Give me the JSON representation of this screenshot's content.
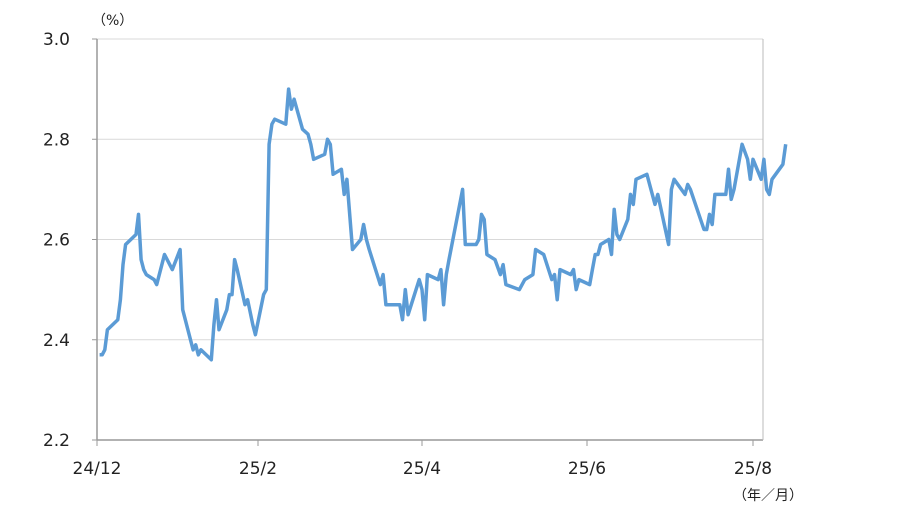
{
  "chart_data": {
    "type": "line",
    "title": "",
    "ylabel": "（%）",
    "xlabel": "（年／月）",
    "ylim": [
      2.2,
      3.0
    ],
    "yticks": [
      "2.2",
      "2.4",
      "2.6",
      "2.8",
      "3.0"
    ],
    "xticks": [
      {
        "label": "24/12",
        "date": "2024-12-01"
      },
      {
        "label": "25/2",
        "date": "2025-02-01"
      },
      {
        "label": "25/4",
        "date": "2025-04-01"
      },
      {
        "label": "25/6",
        "date": "2025-06-01"
      },
      {
        "label": "25/8",
        "date": "2025-08-01"
      }
    ],
    "grid": true,
    "line_color": "#5b9bd5",
    "series": [
      {
        "points": [
          [
            "2024-12-02",
            2.37
          ],
          [
            "2024-12-03",
            2.37
          ],
          [
            "2024-12-04",
            2.38
          ],
          [
            "2024-12-05",
            2.42
          ],
          [
            "2024-12-09",
            2.44
          ],
          [
            "2024-12-10",
            2.48
          ],
          [
            "2024-12-11",
            2.55
          ],
          [
            "2024-12-12",
            2.59
          ],
          [
            "2024-12-16",
            2.61
          ],
          [
            "2024-12-17",
            2.65
          ],
          [
            "2024-12-18",
            2.56
          ],
          [
            "2024-12-19",
            2.54
          ],
          [
            "2024-12-20",
            2.53
          ],
          [
            "2024-12-23",
            2.52
          ],
          [
            "2024-12-24",
            2.51
          ],
          [
            "2024-12-27",
            2.57
          ],
          [
            "2024-12-30",
            2.54
          ],
          [
            "2025-01-02",
            2.58
          ],
          [
            "2025-01-03",
            2.46
          ],
          [
            "2025-01-06",
            2.4
          ],
          [
            "2025-01-07",
            2.38
          ],
          [
            "2025-01-08",
            2.39
          ],
          [
            "2025-01-09",
            2.37
          ],
          [
            "2025-01-10",
            2.38
          ],
          [
            "2025-01-14",
            2.36
          ],
          [
            "2025-01-15",
            2.43
          ],
          [
            "2025-01-16",
            2.48
          ],
          [
            "2025-01-17",
            2.42
          ],
          [
            "2025-01-20",
            2.46
          ],
          [
            "2025-01-21",
            2.49
          ],
          [
            "2025-01-22",
            2.49
          ],
          [
            "2025-01-23",
            2.56
          ],
          [
            "2025-01-24",
            2.54
          ],
          [
            "2025-01-27",
            2.47
          ],
          [
            "2025-01-28",
            2.48
          ],
          [
            "2025-01-30",
            2.43
          ],
          [
            "2025-01-31",
            2.41
          ],
          [
            "2025-02-03",
            2.49
          ],
          [
            "2025-02-04",
            2.5
          ],
          [
            "2025-02-05",
            2.79
          ],
          [
            "2025-02-06",
            2.83
          ],
          [
            "2025-02-07",
            2.84
          ],
          [
            "2025-02-11",
            2.83
          ],
          [
            "2025-02-12",
            2.9
          ],
          [
            "2025-02-13",
            2.86
          ],
          [
            "2025-02-14",
            2.88
          ],
          [
            "2025-02-17",
            2.82
          ],
          [
            "2025-02-19",
            2.81
          ],
          [
            "2025-02-20",
            2.79
          ],
          [
            "2025-02-21",
            2.76
          ],
          [
            "2025-02-25",
            2.77
          ],
          [
            "2025-02-26",
            2.8
          ],
          [
            "2025-02-27",
            2.79
          ],
          [
            "2025-02-28",
            2.73
          ],
          [
            "2025-03-03",
            2.74
          ],
          [
            "2025-03-04",
            2.69
          ],
          [
            "2025-03-05",
            2.72
          ],
          [
            "2025-03-07",
            2.58
          ],
          [
            "2025-03-10",
            2.6
          ],
          [
            "2025-03-11",
            2.63
          ],
          [
            "2025-03-12",
            2.6
          ],
          [
            "2025-03-13",
            2.58
          ],
          [
            "2025-03-17",
            2.51
          ],
          [
            "2025-03-18",
            2.53
          ],
          [
            "2025-03-19",
            2.47
          ],
          [
            "2025-03-24",
            2.47
          ],
          [
            "2025-03-25",
            2.44
          ],
          [
            "2025-03-26",
            2.5
          ],
          [
            "2025-03-27",
            2.45
          ],
          [
            "2025-03-31",
            2.52
          ],
          [
            "2025-04-01",
            2.5
          ],
          [
            "2025-04-02",
            2.44
          ],
          [
            "2025-04-03",
            2.53
          ],
          [
            "2025-04-07",
            2.52
          ],
          [
            "2025-04-08",
            2.54
          ],
          [
            "2025-04-09",
            2.47
          ],
          [
            "2025-04-10",
            2.53
          ],
          [
            "2025-04-11",
            2.56
          ],
          [
            "2025-04-16",
            2.7
          ],
          [
            "2025-04-17",
            2.59
          ],
          [
            "2025-04-21",
            2.59
          ],
          [
            "2025-04-22",
            2.6
          ],
          [
            "2025-04-23",
            2.65
          ],
          [
            "2025-04-24",
            2.64
          ],
          [
            "2025-04-25",
            2.57
          ],
          [
            "2025-04-28",
            2.56
          ],
          [
            "2025-04-30",
            2.53
          ],
          [
            "2025-05-01",
            2.55
          ],
          [
            "2025-05-02",
            2.51
          ],
          [
            "2025-05-07",
            2.5
          ],
          [
            "2025-05-09",
            2.52
          ],
          [
            "2025-05-12",
            2.53
          ],
          [
            "2025-05-13",
            2.58
          ],
          [
            "2025-05-16",
            2.57
          ],
          [
            "2025-05-19",
            2.52
          ],
          [
            "2025-05-20",
            2.53
          ],
          [
            "2025-05-21",
            2.48
          ],
          [
            "2025-05-22",
            2.54
          ],
          [
            "2025-05-26",
            2.53
          ],
          [
            "2025-05-27",
            2.54
          ],
          [
            "2025-05-28",
            2.5
          ],
          [
            "2025-05-29",
            2.52
          ],
          [
            "2025-06-02",
            2.51
          ],
          [
            "2025-06-03",
            2.54
          ],
          [
            "2025-06-04",
            2.57
          ],
          [
            "2025-06-05",
            2.57
          ],
          [
            "2025-06-06",
            2.59
          ],
          [
            "2025-06-09",
            2.6
          ],
          [
            "2025-06-10",
            2.57
          ],
          [
            "2025-06-11",
            2.66
          ],
          [
            "2025-06-12",
            2.61
          ],
          [
            "2025-06-13",
            2.6
          ],
          [
            "2025-06-16",
            2.64
          ],
          [
            "2025-06-17",
            2.69
          ],
          [
            "2025-06-18",
            2.67
          ],
          [
            "2025-06-19",
            2.72
          ],
          [
            "2025-06-23",
            2.73
          ],
          [
            "2025-06-25",
            2.69
          ],
          [
            "2025-06-26",
            2.67
          ],
          [
            "2025-06-27",
            2.69
          ],
          [
            "2025-07-01",
            2.59
          ],
          [
            "2025-07-02",
            2.7
          ],
          [
            "2025-07-03",
            2.72
          ],
          [
            "2025-07-07",
            2.69
          ],
          [
            "2025-07-08",
            2.71
          ],
          [
            "2025-07-09",
            2.7
          ],
          [
            "2025-07-14",
            2.62
          ],
          [
            "2025-07-15",
            2.62
          ],
          [
            "2025-07-16",
            2.65
          ],
          [
            "2025-07-17",
            2.63
          ],
          [
            "2025-07-18",
            2.69
          ],
          [
            "2025-07-22",
            2.69
          ],
          [
            "2025-07-23",
            2.74
          ],
          [
            "2025-07-24",
            2.68
          ],
          [
            "2025-07-25",
            2.7
          ],
          [
            "2025-07-28",
            2.79
          ],
          [
            "2025-07-30",
            2.76
          ],
          [
            "2025-07-31",
            2.72
          ],
          [
            "2025-08-01",
            2.76
          ],
          [
            "2025-08-04",
            2.72
          ],
          [
            "2025-08-05",
            2.76
          ],
          [
            "2025-08-06",
            2.7
          ],
          [
            "2025-08-07",
            2.69
          ],
          [
            "2025-08-08",
            2.72
          ],
          [
            "2025-08-12",
            2.75
          ],
          [
            "2025-08-13",
            2.79
          ]
        ]
      }
    ]
  }
}
